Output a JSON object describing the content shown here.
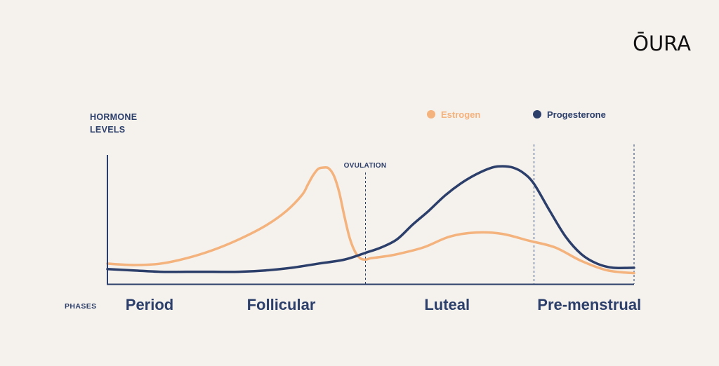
{
  "brand": {
    "logo_text": "ŌURA"
  },
  "chart_data": {
    "type": "line",
    "ylabel_lines": [
      "HORMONE",
      "LEVELS"
    ],
    "xlabel": "PHASES",
    "annotations": [
      {
        "label": "OVULATION",
        "x": 0.49
      }
    ],
    "phase_boundaries": [
      0.49,
      0.81,
      1.0
    ],
    "phases": [
      {
        "label": "Period",
        "center": 0.08
      },
      {
        "label": "Follicular",
        "center": 0.33
      },
      {
        "label": "Luteal",
        "center": 0.645
      },
      {
        "label": "Pre-menstrual",
        "center": 0.915
      }
    ],
    "xlim": [
      0,
      1
    ],
    "ylim": [
      0,
      1
    ],
    "grid": false,
    "legend_position": "top-right",
    "series": [
      {
        "name": "Estrogen",
        "color": "#f4b27c",
        "x": [
          0.0,
          0.05,
          0.1,
          0.15,
          0.2,
          0.25,
          0.3,
          0.34,
          0.37,
          0.38,
          0.39,
          0.4,
          0.41,
          0.42,
          0.43,
          0.44,
          0.45,
          0.46,
          0.47,
          0.48,
          0.49,
          0.5,
          0.52,
          0.55,
          0.6,
          0.65,
          0.7,
          0.75,
          0.8,
          0.85,
          0.9,
          0.95,
          1.0
        ],
        "values": [
          0.15,
          0.14,
          0.15,
          0.19,
          0.25,
          0.33,
          0.43,
          0.54,
          0.66,
          0.73,
          0.8,
          0.85,
          0.86,
          0.855,
          0.8,
          0.68,
          0.5,
          0.34,
          0.24,
          0.19,
          0.18,
          0.19,
          0.2,
          0.22,
          0.27,
          0.35,
          0.38,
          0.37,
          0.32,
          0.27,
          0.17,
          0.1,
          0.08
        ]
      },
      {
        "name": "Progesterone",
        "color": "#2c3f6b",
        "x": [
          0.0,
          0.05,
          0.1,
          0.15,
          0.2,
          0.25,
          0.3,
          0.35,
          0.4,
          0.45,
          0.49,
          0.52,
          0.55,
          0.58,
          0.61,
          0.64,
          0.67,
          0.7,
          0.73,
          0.75,
          0.77,
          0.79,
          0.81,
          0.84,
          0.87,
          0.9,
          0.93,
          0.96,
          1.0
        ],
        "values": [
          0.11,
          0.1,
          0.09,
          0.09,
          0.09,
          0.09,
          0.1,
          0.12,
          0.15,
          0.18,
          0.23,
          0.27,
          0.33,
          0.44,
          0.54,
          0.65,
          0.74,
          0.81,
          0.86,
          0.87,
          0.86,
          0.82,
          0.74,
          0.54,
          0.35,
          0.22,
          0.15,
          0.12,
          0.12
        ]
      }
    ]
  }
}
